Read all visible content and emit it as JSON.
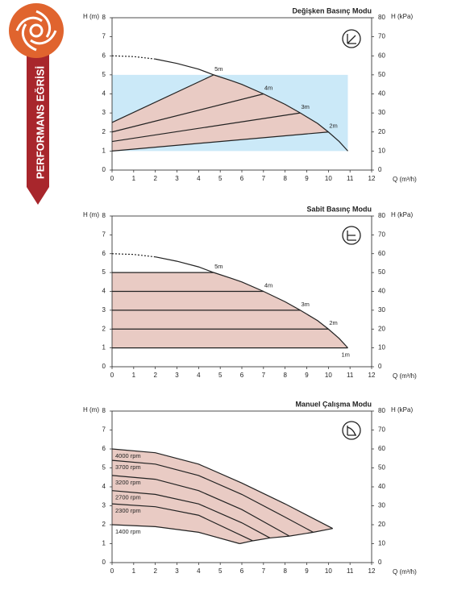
{
  "sidebar": {
    "label": "PERFORMANS EĞRİSİ"
  },
  "chart_data": [
    {
      "type": "line",
      "title": "Değişken Basınç Modu",
      "xlabel": "Q (m³/h)",
      "ylabel": "H (m)",
      "y2label": "H (kPa)",
      "xlim": [
        0,
        12
      ],
      "xticks": [
        0,
        1,
        2,
        3,
        4,
        5,
        6,
        7,
        8,
        9,
        10,
        11,
        12
      ],
      "ylim": [
        0,
        8
      ],
      "yticks": [
        0,
        1,
        2,
        3,
        4,
        5,
        6,
        7,
        8
      ],
      "y2lim": [
        0,
        80
      ],
      "y2ticks": [
        0,
        10,
        20,
        30,
        40,
        50,
        60,
        70,
        80
      ],
      "region": {
        "xlim": [
          0,
          10.9
        ],
        "ylim": [
          1,
          5
        ],
        "color": "#cbe9f8"
      },
      "fill_color": "#e9cbc4",
      "curve_dashed": {
        "x": [
          0,
          1,
          2
        ],
        "values": [
          6,
          5.96,
          5.83
        ]
      },
      "curve": {
        "x": [
          2,
          3,
          4,
          4.7,
          5.5,
          6,
          7,
          8,
          8.7,
          9.5,
          10,
          10.5,
          10.9
        ],
        "values": [
          5.83,
          5.6,
          5.3,
          5,
          4.7,
          4.5,
          4,
          3.45,
          3,
          2.45,
          2,
          1.5,
          1
        ]
      },
      "series": [
        {
          "name": "5m",
          "color": "#222222",
          "x": [
            0,
            4.7
          ],
          "values": [
            2.5,
            5
          ]
        },
        {
          "name": "4m",
          "color": "#222222",
          "x": [
            0,
            7
          ],
          "values": [
            2,
            4
          ]
        },
        {
          "name": "3m",
          "color": "#222222",
          "x": [
            0,
            8.7
          ],
          "values": [
            1.5,
            3
          ]
        },
        {
          "name": "2m",
          "color": "#222222",
          "x": [
            0,
            10
          ],
          "values": [
            1,
            2
          ]
        }
      ]
    },
    {
      "type": "line",
      "title": "Sabit Basınç Modu",
      "xlabel": "Q (m³/h)",
      "ylabel": "H (m)",
      "y2label": "H (kPa)",
      "xlim": [
        0,
        12
      ],
      "xticks": [
        0,
        1,
        2,
        3,
        4,
        5,
        6,
        7,
        8,
        9,
        10,
        11,
        12
      ],
      "ylim": [
        0,
        8
      ],
      "yticks": [
        0,
        1,
        2,
        3,
        4,
        5,
        6,
        7,
        8
      ],
      "y2lim": [
        0,
        80
      ],
      "y2ticks": [
        0,
        10,
        20,
        30,
        40,
        50,
        60,
        70,
        80
      ],
      "fill_color": "#e9cbc4",
      "curve_dashed": {
        "x": [
          0,
          1,
          2
        ],
        "values": [
          6,
          5.96,
          5.83
        ]
      },
      "curve": {
        "x": [
          2,
          3,
          4,
          4.7,
          5.5,
          6,
          7,
          8,
          8.7,
          9.5,
          10,
          10.5,
          10.9
        ],
        "values": [
          5.83,
          5.6,
          5.3,
          5,
          4.7,
          4.5,
          4,
          3.45,
          3,
          2.45,
          2,
          1.5,
          1
        ]
      },
      "series": [
        {
          "name": "5m",
          "color": "#222222",
          "x": [
            0,
            4.7
          ],
          "values": [
            5,
            5
          ]
        },
        {
          "name": "4m",
          "color": "#222222",
          "x": [
            0,
            7
          ],
          "values": [
            4,
            4
          ]
        },
        {
          "name": "3m",
          "color": "#222222",
          "x": [
            0,
            8.7
          ],
          "values": [
            3,
            3
          ]
        },
        {
          "name": "2m",
          "color": "#222222",
          "x": [
            0,
            10
          ],
          "values": [
            2,
            2
          ]
        },
        {
          "name": "1m",
          "color": "#222222",
          "x": [
            0,
            10.9
          ],
          "values": [
            1,
            1
          ]
        }
      ]
    },
    {
      "type": "line",
      "title": "Manuel Çalışma Modu",
      "xlabel": "Q (m³/h)",
      "ylabel": "H (m)",
      "y2label": "H (kPa)",
      "xlim": [
        0,
        12
      ],
      "xticks": [
        0,
        1,
        2,
        3,
        4,
        5,
        6,
        7,
        8,
        9,
        10,
        11,
        12
      ],
      "ylim": [
        0,
        8
      ],
      "yticks": [
        0,
        1,
        2,
        3,
        4,
        5,
        6,
        7,
        8
      ],
      "y2lim": [
        0,
        80
      ],
      "y2ticks": [
        0,
        10,
        20,
        30,
        40,
        50,
        60,
        70,
        80
      ],
      "fill_color": "#e9cbc4",
      "series": [
        {
          "name": "4000 rpm",
          "color": "#222222",
          "x": [
            0,
            2,
            4,
            6,
            8,
            10.2
          ],
          "values": [
            6,
            5.8,
            5.2,
            4.2,
            3.1,
            1.8
          ]
        },
        {
          "name": "3700 rpm",
          "color": "#222222",
          "x": [
            0,
            2,
            4,
            6,
            8,
            9.3
          ],
          "values": [
            5.4,
            5.2,
            4.6,
            3.6,
            2.4,
            1.6
          ]
        },
        {
          "name": "3200 rpm",
          "color": "#222222",
          "x": [
            0,
            2,
            4,
            6,
            8.2
          ],
          "values": [
            4.6,
            4.4,
            3.8,
            2.8,
            1.4
          ]
        },
        {
          "name": "2700 rpm",
          "color": "#222222",
          "x": [
            0,
            2,
            4,
            6,
            7.3
          ],
          "values": [
            3.8,
            3.6,
            3.1,
            2.1,
            1.3
          ]
        },
        {
          "name": "2300 rpm",
          "color": "#222222",
          "x": [
            0,
            2,
            4,
            6.5
          ],
          "values": [
            3.1,
            2.95,
            2.5,
            1.15
          ]
        },
        {
          "name": "1400 rpm",
          "color": "#222222",
          "x": [
            0,
            2,
            4,
            5.9
          ],
          "values": [
            2,
            1.9,
            1.6,
            1.0
          ]
        }
      ]
    }
  ]
}
